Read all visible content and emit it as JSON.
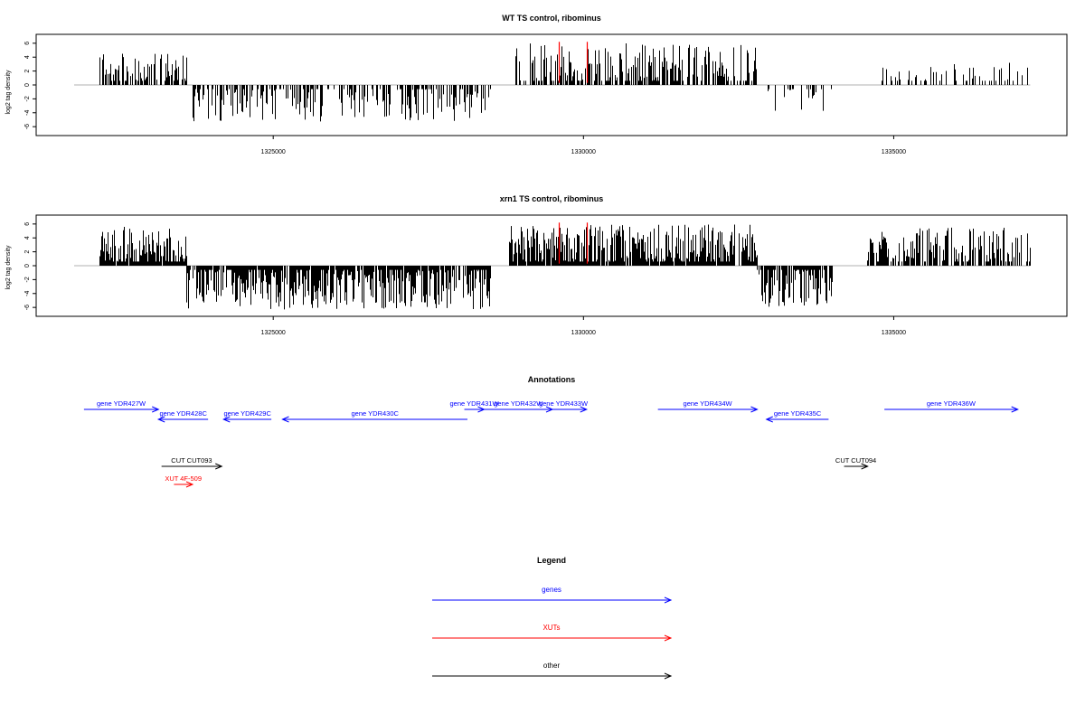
{
  "colors": {
    "genes": "#0000ff",
    "xuts": "#ff0000",
    "other": "#000000",
    "track": "#000000",
    "highlight": "#ff0000",
    "baseline": "#b0b0b0"
  },
  "chart_data": [
    {
      "type": "bar",
      "title": "WT TS control, ribominus",
      "ylabel": "log2 tag density",
      "xlim": [
        1321500,
        1337500
      ],
      "ylim": [
        -6.5,
        6.5
      ],
      "x_ticks": [
        1325000,
        1330000,
        1335000
      ],
      "x_tick_labels": [
        "1325000",
        "1330000",
        "1335000"
      ],
      "y_ticks": [
        6,
        4,
        2,
        0,
        -2,
        -4,
        -6
      ],
      "y_tick_labels": [
        "6",
        "4",
        "2",
        "0",
        "-2",
        "-4",
        "-6"
      ],
      "highlights": [
        1329600,
        1330050
      ],
      "seed": 7,
      "segments": [
        {
          "start": 1322200,
          "end": 1323600,
          "sign": 1,
          "max": 4.5,
          "density": 0.55
        },
        {
          "start": 1323700,
          "end": 1328500,
          "sign": -1,
          "max": 5.3,
          "density": 0.45
        },
        {
          "start": 1328800,
          "end": 1332800,
          "sign": 1,
          "max": 6.0,
          "density": 0.55
        },
        {
          "start": 1332900,
          "end": 1334000,
          "sign": -1,
          "max": 4.0,
          "density": 0.25
        },
        {
          "start": 1334800,
          "end": 1337200,
          "sign": 1,
          "max": 3.2,
          "density": 0.25
        }
      ]
    },
    {
      "type": "bar",
      "title": "xrn1 TS control, ribominus",
      "ylabel": "log2 tag density",
      "xlim": [
        1321500,
        1337500
      ],
      "ylim": [
        -6.5,
        6.5
      ],
      "x_ticks": [
        1325000,
        1330000,
        1335000
      ],
      "x_tick_labels": [
        "1325000",
        "1330000",
        "1335000"
      ],
      "y_ticks": [
        6,
        4,
        2,
        0,
        -2,
        -4,
        -6
      ],
      "y_tick_labels": [
        "6",
        "4",
        "2",
        "0",
        "-2",
        "-4",
        "-6"
      ],
      "highlights": [
        1329600,
        1330050
      ],
      "seed": 23,
      "segments": [
        {
          "start": 1322200,
          "end": 1323600,
          "sign": 1,
          "max": 5.6,
          "density": 0.95
        },
        {
          "start": 1323600,
          "end": 1328500,
          "sign": -1,
          "max": 6.3,
          "density": 0.85
        },
        {
          "start": 1328800,
          "end": 1332800,
          "sign": 1,
          "max": 6.0,
          "density": 0.85
        },
        {
          "start": 1332800,
          "end": 1334000,
          "sign": -1,
          "max": 6.0,
          "density": 0.85
        },
        {
          "start": 1334500,
          "end": 1337200,
          "sign": 1,
          "max": 5.5,
          "density": 0.6
        }
      ]
    }
  ],
  "annotations": {
    "title": "Annotations",
    "features": [
      {
        "label": "gene YDR427W",
        "start": 1321950,
        "end": 1323150,
        "strand": "+",
        "kind": "genes",
        "row": 0
      },
      {
        "label": "gene YDR428C",
        "start": 1323150,
        "end": 1323950,
        "strand": "-",
        "kind": "genes",
        "row": 1
      },
      {
        "label": "gene YDR429C",
        "start": 1324200,
        "end": 1324970,
        "strand": "-",
        "kind": "genes",
        "row": 1
      },
      {
        "label": "gene YDR430C",
        "start": 1325150,
        "end": 1328130,
        "strand": "-",
        "kind": "genes",
        "row": 1
      },
      {
        "label": "gene YDR431W",
        "start": 1328080,
        "end": 1328400,
        "strand": "+",
        "kind": "genes",
        "row": 0
      },
      {
        "label": "gene YDR432W",
        "start": 1328400,
        "end": 1329500,
        "strand": "+",
        "kind": "genes",
        "row": 0
      },
      {
        "label": "gene YDR433W",
        "start": 1329300,
        "end": 1330050,
        "strand": "+",
        "kind": "genes",
        "row": 0
      },
      {
        "label": "gene YDR434W",
        "start": 1331200,
        "end": 1332800,
        "strand": "+",
        "kind": "genes",
        "row": 0
      },
      {
        "label": "gene YDR435C",
        "start": 1332950,
        "end": 1333950,
        "strand": "-",
        "kind": "genes",
        "row": 1
      },
      {
        "label": "gene YDR436W",
        "start": 1334850,
        "end": 1337000,
        "strand": "+",
        "kind": "genes",
        "row": 0
      },
      {
        "label": "CUT CUT093",
        "start": 1323200,
        "end": 1324170,
        "strand": "+",
        "kind": "other",
        "row": 3
      },
      {
        "label": "CUT CUT094",
        "start": 1334200,
        "end": 1334580,
        "strand": "+",
        "kind": "other",
        "row": 3
      },
      {
        "label": "XUT 4F-509",
        "start": 1323400,
        "end": 1323700,
        "strand": "+",
        "kind": "xuts",
        "row": 4
      }
    ]
  },
  "legend": {
    "title": "Legend",
    "items": [
      {
        "label": "genes",
        "kind": "genes"
      },
      {
        "label": "XUTs",
        "kind": "xuts"
      },
      {
        "label": "other",
        "kind": "other"
      }
    ]
  }
}
